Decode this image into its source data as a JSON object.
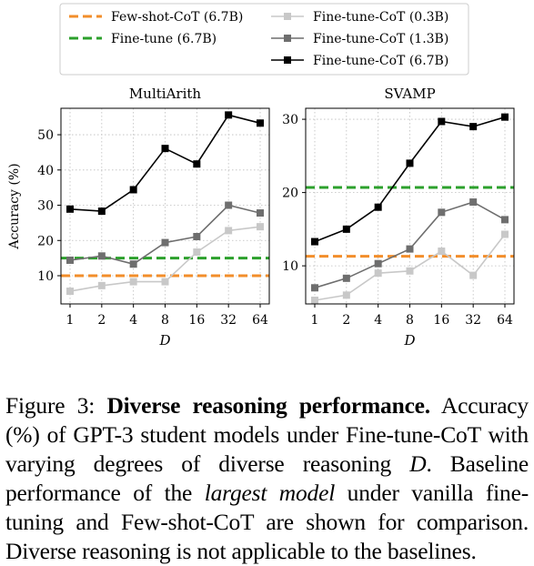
{
  "legend": [
    {
      "label": "Few-shot-CoT (6.7B)",
      "color": "#f28e2b",
      "style": "dashed",
      "marker": "none"
    },
    {
      "label": "Fine-tune (6.7B)",
      "color": "#2ca02c",
      "style": "dashed",
      "marker": "none"
    },
    {
      "label": "Fine-tune-CoT (0.3B)",
      "color": "#c8c8c8",
      "style": "solid",
      "marker": "square"
    },
    {
      "label": "Fine-tune-CoT (1.3B)",
      "color": "#6e6e6e",
      "style": "solid",
      "marker": "square"
    },
    {
      "label": "Fine-tune-CoT (6.7B)",
      "color": "#000000",
      "style": "solid",
      "marker": "square"
    }
  ],
  "chart_data": [
    {
      "type": "line",
      "title": "MultiArith",
      "xlabel": "D",
      "ylabel": "Accuracy (%)",
      "categories": [
        "1",
        "2",
        "4",
        "8",
        "16",
        "32",
        "64"
      ],
      "ylim": [
        2,
        57.5
      ],
      "yticks": [
        10,
        20,
        30,
        40,
        50
      ],
      "grid": true,
      "series": [
        {
          "name": "Fine-tune-CoT (0.3B)",
          "color": "#c8c8c8",
          "values": [
            5.6,
            7.2,
            8.3,
            8.3,
            16.7,
            22.8,
            23.9
          ]
        },
        {
          "name": "Fine-tune-CoT (1.3B)",
          "color": "#6e6e6e",
          "values": [
            14.4,
            15.6,
            13.3,
            19.4,
            21.1,
            30.0,
            27.8
          ]
        },
        {
          "name": "Fine-tune-CoT (6.7B)",
          "color": "#000000",
          "values": [
            28.9,
            28.3,
            34.4,
            46.1,
            41.7,
            55.6,
            53.3
          ]
        }
      ],
      "baselines": [
        {
          "name": "Few-shot-CoT (6.7B)",
          "color": "#f28e2b",
          "value": 10.0
        },
        {
          "name": "Fine-tune (6.7B)",
          "color": "#2ca02c",
          "value": 15.0
        }
      ]
    },
    {
      "type": "line",
      "title": "SVAMP",
      "xlabel": "D",
      "ylabel": "",
      "categories": [
        "1",
        "2",
        "4",
        "8",
        "16",
        "32",
        "64"
      ],
      "ylim": [
        4.8,
        31.5
      ],
      "yticks": [
        10,
        20,
        30
      ],
      "grid": true,
      "series": [
        {
          "name": "Fine-tune-CoT (0.3B)",
          "color": "#c8c8c8",
          "values": [
            5.3,
            6.0,
            9.0,
            9.3,
            12.0,
            8.7,
            14.3
          ]
        },
        {
          "name": "Fine-tune-CoT (1.3B)",
          "color": "#6e6e6e",
          "values": [
            7.0,
            8.3,
            10.3,
            12.3,
            17.3,
            18.7,
            16.3
          ]
        },
        {
          "name": "Fine-tune-CoT (6.7B)",
          "color": "#000000",
          "values": [
            13.3,
            15.0,
            18.0,
            24.0,
            29.7,
            29.0,
            30.3
          ]
        }
      ],
      "baselines": [
        {
          "name": "Few-shot-CoT (6.7B)",
          "color": "#f28e2b",
          "value": 11.3
        },
        {
          "name": "Fine-tune (6.7B)",
          "color": "#2ca02c",
          "value": 20.7
        }
      ]
    }
  ],
  "caption": {
    "label": "Figure 3: ",
    "bold": "Diverse reasoning performance.",
    "text1": " Accuracy (%) of GPT-3 student models under Fine-tune-CoT with varying degrees of diverse reasoning ",
    "var": "D",
    "text2": ". Baseline performance of the ",
    "italic": "largest model",
    "text3": " under vanilla fine-tuning and Few-shot-CoT are shown for comparison. Diverse reasoning is not applicable to the baselines."
  }
}
